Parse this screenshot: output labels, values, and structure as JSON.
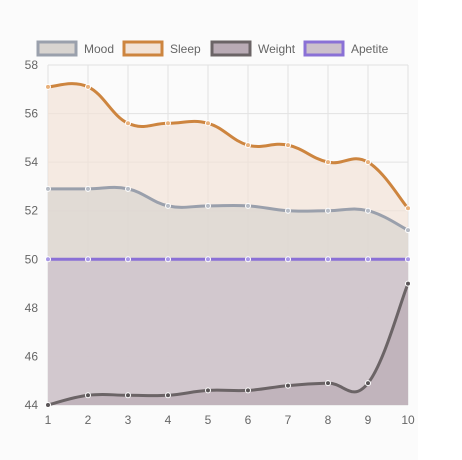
{
  "chart_data": {
    "type": "area",
    "categories": [
      "1",
      "2",
      "3",
      "4",
      "5",
      "6",
      "7",
      "8",
      "9",
      "10"
    ],
    "ylim": [
      44,
      58
    ],
    "yticks": [
      "44",
      "46",
      "48",
      "50",
      "52",
      "54",
      "56",
      "58"
    ],
    "grid": true,
    "legend_position": "top",
    "series": [
      {
        "name": "Mood",
        "values": [
          52.9,
          52.9,
          52.9,
          52.2,
          52.2,
          52.2,
          52.0,
          52.0,
          52.0,
          51.2
        ],
        "line_color": "#9aa0ac",
        "fill_color": "#d8d4d0",
        "point_color": "#b7bcc5"
      },
      {
        "name": "Sleep",
        "values": [
          57.1,
          57.1,
          55.6,
          55.6,
          55.6,
          54.7,
          54.7,
          54.0,
          54.0,
          52.1
        ],
        "line_color": "#cd853f",
        "fill_color": "#f2e3d7",
        "point_color": "#e8b07a"
      },
      {
        "name": "Weight",
        "values": [
          44.0,
          44.4,
          44.4,
          44.4,
          44.6,
          44.6,
          44.8,
          44.9,
          44.9,
          49.0
        ],
        "line_color": "#6b6466",
        "fill_color": "#b9abb5",
        "point_color": "#5a5557"
      },
      {
        "name": "Apetite",
        "values": [
          50,
          50,
          50,
          50,
          50,
          50,
          50,
          50,
          50,
          50
        ],
        "line_color": "#8a70d6",
        "fill_color": "#ccc0cb",
        "point_color": "#a898e6"
      }
    ]
  }
}
